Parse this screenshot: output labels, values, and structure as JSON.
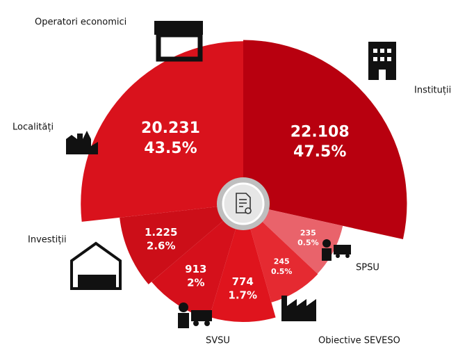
{
  "chart_data": {
    "type": "rose",
    "categories": [
      "Instituții",
      "SPSU",
      "Obiective SEVESO",
      "SVSU",
      "Investiții",
      "Localități",
      "Operatori economici"
    ],
    "values": [
      22108,
      235,
      245,
      774,
      913,
      1225,
      20231
    ],
    "value_labels": [
      "22.108",
      "235",
      "245",
      "774",
      "913",
      "1.225",
      "20.231"
    ],
    "shares": [
      47.5,
      0.5,
      0.5,
      1.7,
      2,
      2.6,
      43.5
    ],
    "share_labels": [
      "47.5%",
      "0.5%",
      "0.5%",
      "1.7%",
      "2%",
      "2.6%",
      "43.5%"
    ],
    "colors": [
      "#b8000f",
      "#e9636b",
      "#e52a31",
      "#df141d",
      "#d5101b",
      "#cc0e18",
      "#d9121c"
    ]
  }
}
